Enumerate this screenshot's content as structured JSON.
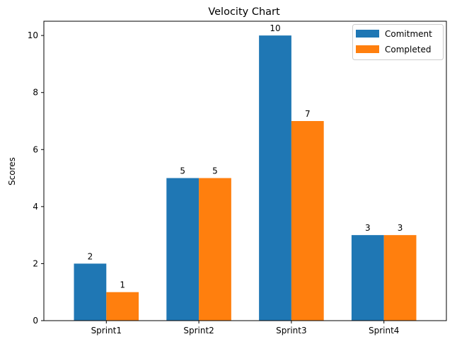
{
  "chart_data": {
    "type": "bar",
    "title": "Velocity Chart",
    "xlabel": "",
    "ylabel": "Scores",
    "categories": [
      "Sprint1",
      "Sprint2",
      "Sprint3",
      "Sprint4"
    ],
    "series": [
      {
        "name": "Comitment",
        "values": [
          2,
          5,
          10,
          3
        ],
        "color": "#1f77b4"
      },
      {
        "name": "Completed",
        "values": [
          1,
          5,
          7,
          3
        ],
        "color": "#ff7f0e"
      }
    ],
    "ylim": [
      0,
      10.5
    ],
    "yticks": [
      "0",
      "2",
      "4",
      "6",
      "8",
      "10"
    ],
    "legend": "top-right",
    "grid": false
  }
}
